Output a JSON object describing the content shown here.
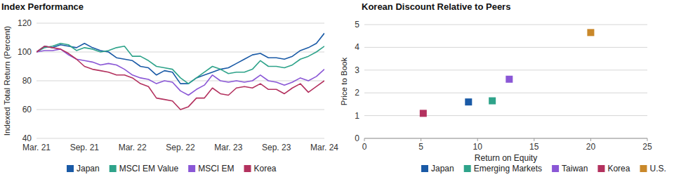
{
  "chart_data": [
    {
      "type": "line",
      "title": "Index Performance",
      "ylabel": "Indexed Total Return (Percent)",
      "categories": [
        "Mar. 21",
        null,
        null,
        null,
        null,
        null,
        "Sep. 21",
        null,
        null,
        null,
        null,
        null,
        "Mar. 22",
        null,
        null,
        null,
        null,
        null,
        "Sep. 22",
        null,
        null,
        null,
        null,
        null,
        "Mar. 23",
        null,
        null,
        null,
        null,
        null,
        "Sep. 23",
        null,
        null,
        null,
        null,
        null,
        "Mar. 24"
      ],
      "series": [
        {
          "name": "Japan",
          "color": "#1a5aa6",
          "values": [
            100,
            104,
            103,
            105,
            104,
            103,
            106,
            103,
            101,
            100,
            96,
            95,
            94,
            90,
            89,
            84,
            87,
            86,
            78,
            78,
            82,
            84,
            86,
            88,
            89,
            92,
            95,
            98,
            99,
            96,
            96,
            95,
            97,
            101,
            103,
            106,
            113
          ]
        },
        {
          "name": "MSCI EM Value",
          "color": "#2ea38a",
          "values": [
            100,
            103,
            104,
            106,
            105,
            101,
            103,
            102,
            100,
            101,
            103,
            104,
            97,
            97,
            94,
            90,
            89,
            88,
            82,
            78,
            82,
            86,
            90,
            88,
            85,
            86,
            86,
            88,
            94,
            90,
            90,
            89,
            91,
            95,
            97,
            100,
            104
          ]
        },
        {
          "name": "MSCI EM",
          "color": "#8a57d6",
          "values": [
            100,
            101,
            101,
            102,
            98,
            95,
            94,
            93,
            91,
            92,
            91,
            88,
            84,
            82,
            81,
            78,
            80,
            79,
            73,
            70,
            74,
            77,
            84,
            80,
            79,
            80,
            79,
            80,
            84,
            80,
            79,
            77,
            79,
            82,
            80,
            83,
            88
          ]
        },
        {
          "name": "Korea",
          "color": "#b3315e",
          "values": [
            100,
            104,
            103,
            102,
            99,
            95,
            90,
            88,
            87,
            86,
            84,
            84,
            82,
            78,
            76,
            68,
            67,
            66,
            60,
            62,
            68,
            68,
            75,
            71,
            70,
            75,
            76,
            75,
            78,
            74,
            74,
            71,
            75,
            78,
            72,
            76,
            80
          ]
        }
      ],
      "ylim": [
        40,
        120
      ],
      "yticks": [
        40,
        60,
        80,
        100,
        120
      ],
      "grid": true,
      "legend": "bottom"
    },
    {
      "type": "scatter",
      "title": "Korean Discount Relative to Peers",
      "xlabel": "Return on Equity",
      "ylabel": "Price to Book",
      "series": [
        {
          "name": "Japan",
          "color": "#1a5aa6",
          "x": [
            9.2
          ],
          "values": [
            1.6
          ]
        },
        {
          "name": "Emerging Markets",
          "color": "#2ea38a",
          "x": [
            11.3
          ],
          "values": [
            1.65
          ]
        },
        {
          "name": "Taiwan",
          "color": "#8a57d6",
          "x": [
            12.8
          ],
          "values": [
            2.6
          ]
        },
        {
          "name": "Korea",
          "color": "#b3315e",
          "x": [
            5.2
          ],
          "values": [
            1.1
          ]
        },
        {
          "name": "U.S.",
          "color": "#c9882a",
          "x": [
            20
          ],
          "values": [
            4.65
          ]
        }
      ],
      "xlim": [
        0,
        25
      ],
      "xticks": [
        0,
        5,
        10,
        15,
        20,
        25
      ],
      "ylim": [
        0,
        5
      ],
      "yticks": [
        0,
        1,
        2,
        3,
        4,
        5
      ],
      "marker": "square",
      "grid": true,
      "legend": "bottom"
    }
  ]
}
